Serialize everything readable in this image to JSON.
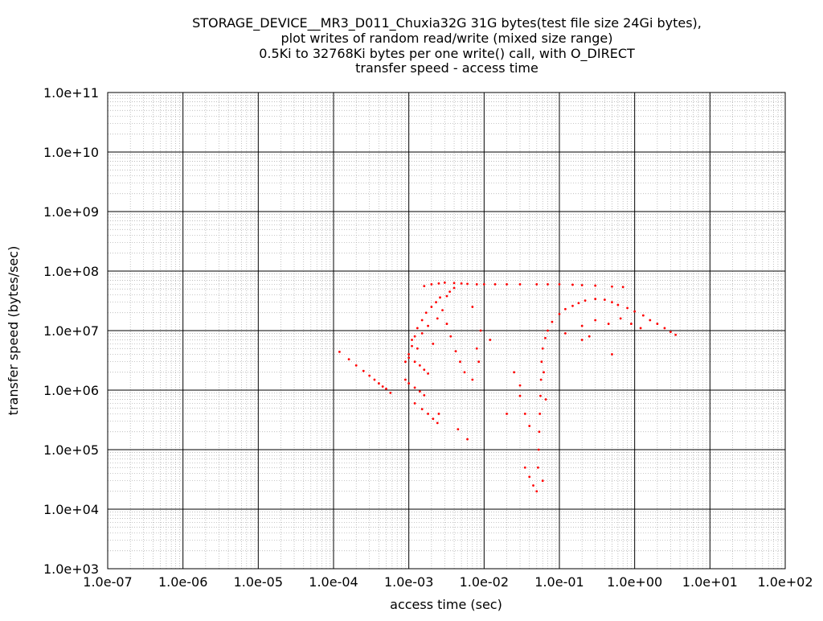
{
  "chart_data": {
    "type": "scatter",
    "title_lines": [
      "STORAGE_DEVICE__MR3_D011_Chuxia32G 31G bytes(test file size 24Gi bytes),",
      "plot writes of random read/write (mixed size range)",
      "0.5Ki to 32768Ki bytes per one write() call, with O_DIRECT",
      "transfer speed - access time"
    ],
    "xlabel": "access time (sec)",
    "ylabel": "transfer speed (bytes/sec)",
    "x_scale": "log",
    "y_scale": "log",
    "xlim": [
      1e-07,
      100
    ],
    "ylim": [
      1000,
      100000000000.0
    ],
    "x_tick_labels": [
      "1.0e-07",
      "1.0e-06",
      "1.0e-05",
      "1.0e-04",
      "1.0e-03",
      "1.0e-02",
      "1.0e-01",
      "1.0e+00",
      "1.0e+01",
      "1.0e+02"
    ],
    "y_tick_labels": [
      "1.0e+03",
      "1.0e+04",
      "1.0e+05",
      "1.0e+06",
      "1.0e+07",
      "1.0e+08",
      "1.0e+09",
      "1.0e+10",
      "1.0e+11"
    ],
    "grid": true,
    "point_color": "#ff0000",
    "series": [
      {
        "points": [
          [
            0.00012,
            4400000.0
          ],
          [
            0.00016,
            3300000.0
          ],
          [
            0.0002,
            2600000.0
          ],
          [
            0.00025,
            2100000.0
          ],
          [
            0.0003,
            1750000.0
          ],
          [
            0.00035,
            1500000.0
          ],
          [
            0.0004,
            1300000.0
          ],
          [
            0.00045,
            1150000.0
          ],
          [
            0.0005,
            1050000.0
          ],
          [
            0.00057,
            900000.0
          ],
          [
            0.0009,
            1500000.0
          ],
          [
            0.001,
            1300000.0
          ],
          [
            0.0012,
            1100000.0
          ],
          [
            0.0014,
            950000.0
          ],
          [
            0.0016,
            820000.0
          ],
          [
            0.001,
            3500000.0
          ],
          [
            0.0012,
            3000000.0
          ],
          [
            0.0014,
            2600000.0
          ],
          [
            0.0016,
            2200000.0
          ],
          [
            0.0018,
            1900000.0
          ],
          [
            0.0012,
            600000.0
          ],
          [
            0.0015,
            480000.0
          ],
          [
            0.0018,
            400000.0
          ],
          [
            0.0021,
            330000.0
          ],
          [
            0.0024,
            280000.0
          ],
          [
            0.0009,
            3000000.0
          ],
          [
            0.001,
            4000000.0
          ],
          [
            0.0011,
            5500000.0
          ],
          [
            0.0012,
            8000000.0
          ],
          [
            0.0013,
            11000000.0
          ],
          [
            0.0015,
            15000000.0
          ],
          [
            0.0017,
            20000000.0
          ],
          [
            0.002,
            25000000.0
          ],
          [
            0.0023,
            30000000.0
          ],
          [
            0.0026,
            36000000.0
          ],
          [
            0.0011,
            7000000.0
          ],
          [
            0.0013,
            5000000.0
          ],
          [
            0.0015,
            9000000.0
          ],
          [
            0.0018,
            12000000.0
          ],
          [
            0.0021,
            6000000.0
          ],
          [
            0.0024,
            16000000.0
          ],
          [
            0.0028,
            22000000.0
          ],
          [
            0.0032,
            13000000.0
          ],
          [
            0.0036,
            8000000.0
          ],
          [
            0.0042,
            4500000.0
          ],
          [
            0.0048,
            3000000.0
          ],
          [
            0.0055,
            2000000.0
          ],
          [
            0.0025,
            400000.0
          ],
          [
            0.0045,
            220000.0
          ],
          [
            0.006,
            150000.0
          ],
          [
            0.0016,
            56000000.0
          ],
          [
            0.002,
            60000000.0
          ],
          [
            0.0025,
            62000000.0
          ],
          [
            0.003,
            64000000.0
          ],
          [
            0.004,
            63000000.0
          ],
          [
            0.005,
            62000000.0
          ],
          [
            0.006,
            61000000.0
          ],
          [
            0.008,
            60000000.0
          ],
          [
            0.01,
            60000000.0
          ],
          [
            0.014,
            60000000.0
          ],
          [
            0.02,
            60000000.0
          ],
          [
            0.03,
            60000000.0
          ],
          [
            0.05,
            60000000.0
          ],
          [
            0.07,
            60000000.0
          ],
          [
            0.1,
            60000000.0
          ],
          [
            0.15,
            59000000.0
          ],
          [
            0.2,
            58000000.0
          ],
          [
            0.3,
            57000000.0
          ],
          [
            0.5,
            55000000.0
          ],
          [
            0.7,
            54000000.0
          ],
          [
            0.0035,
            45000000.0
          ],
          [
            0.004,
            52000000.0
          ],
          [
            0.0032,
            38000000.0
          ],
          [
            0.007,
            25000000.0
          ],
          [
            0.009,
            10000000.0
          ],
          [
            0.008,
            5000000.0
          ],
          [
            0.0085,
            3000000.0
          ],
          [
            0.007,
            1500000.0
          ],
          [
            0.012,
            7000000.0
          ],
          [
            0.025,
            2000000.0
          ],
          [
            0.03,
            1200000.0
          ],
          [
            0.03,
            800000.0
          ],
          [
            0.035,
            400000.0
          ],
          [
            0.04,
            250000.0
          ],
          [
            0.035,
            50000.0
          ],
          [
            0.04,
            35000.0
          ],
          [
            0.045,
            25000.0
          ],
          [
            0.05,
            20000.0
          ],
          [
            0.052,
            50000.0
          ],
          [
            0.053,
            100000.0
          ],
          [
            0.054,
            200000.0
          ],
          [
            0.055,
            400000.0
          ],
          [
            0.056,
            800000.0
          ],
          [
            0.057,
            1500000.0
          ],
          [
            0.058,
            3000000.0
          ],
          [
            0.06,
            5000000.0
          ],
          [
            0.065,
            7500000.0
          ],
          [
            0.07,
            10000000.0
          ],
          [
            0.08,
            14000000.0
          ],
          [
            0.1,
            19000000.0
          ],
          [
            0.12,
            23000000.0
          ],
          [
            0.15,
            26000000.0
          ],
          [
            0.18,
            29000000.0
          ],
          [
            0.22,
            32000000.0
          ],
          [
            0.3,
            34000000.0
          ],
          [
            0.4,
            33000000.0
          ],
          [
            0.5,
            30000000.0
          ],
          [
            0.6,
            27000000.0
          ],
          [
            0.8,
            24000000.0
          ],
          [
            1.0,
            21000000.0
          ],
          [
            1.3,
            18000000.0
          ],
          [
            1.6,
            15000000.0
          ],
          [
            2.0,
            13000000.0
          ],
          [
            2.5,
            11000000.0
          ],
          [
            3.0,
            9500000.0
          ],
          [
            3.5,
            8500000.0
          ],
          [
            0.12,
            9000000.0
          ],
          [
            0.2,
            12000000.0
          ],
          [
            0.3,
            15000000.0
          ],
          [
            0.45,
            13000000.0
          ],
          [
            0.65,
            16000000.0
          ],
          [
            0.9,
            13000000.0
          ],
          [
            1.2,
            11000000.0
          ],
          [
            0.5,
            4000000.0
          ],
          [
            0.25,
            8000000.0
          ],
          [
            0.2,
            7000000.0
          ],
          [
            0.066,
            700000.0
          ],
          [
            0.062,
            2000000.0
          ],
          [
            0.02,
            400000.0
          ],
          [
            0.06,
            30000.0
          ]
        ]
      }
    ]
  }
}
